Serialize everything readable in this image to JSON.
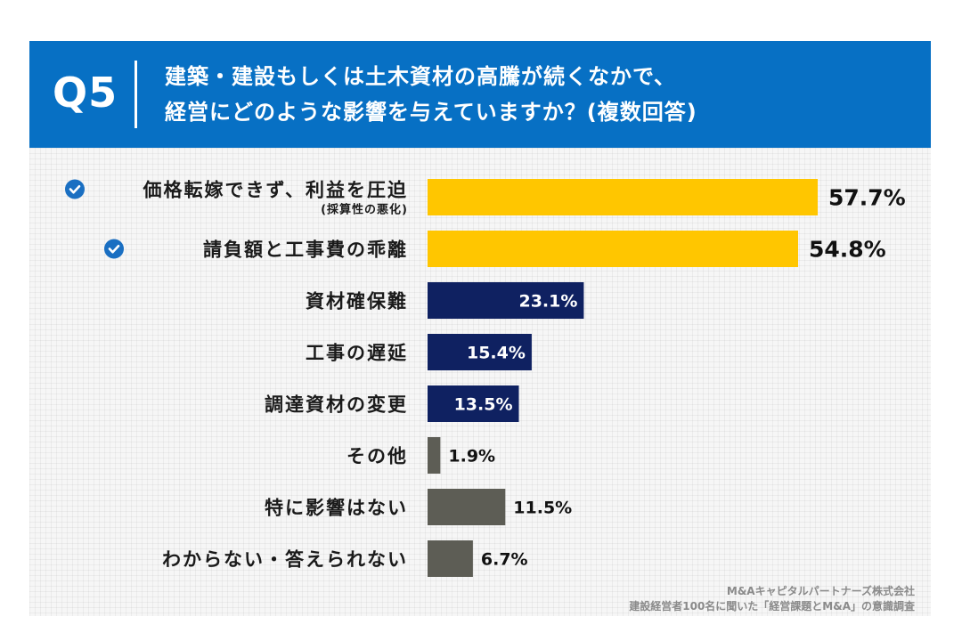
{
  "header": {
    "question_number": "Q5",
    "question_line1": "建築・建設もしくは土木資材の高騰が続くなかで、",
    "question_line2": "経営にどのような影響を与えていますか？(複数回答)"
  },
  "source": {
    "line1": "M&Aキャピタルパートナーズ株式会社",
    "line2": "建設経営者100名に聞いた「経営課題とM&A」の意識調査"
  },
  "colors": {
    "header": "#0770c4",
    "highlight": "#ffc600",
    "navy": "#0f2161",
    "gray": "#5d5d55",
    "check": "#1a6fc2"
  },
  "chart_data": {
    "type": "bar",
    "orientation": "horizontal",
    "title": "建築・建設もしくは土木資材の高騰が続くなかで、経営にどのような影響を与えていますか？(複数回答)",
    "unit": "%",
    "xlim": [
      0,
      60
    ],
    "categories": [
      "価格転嫁できず、利益を圧迫",
      "請負額と工事費の乖離",
      "資材確保難",
      "工事の遅延",
      "調達資材の変更",
      "その他",
      "特に影響はない",
      "わからない・答えられない"
    ],
    "sublabels": [
      "(採算性の悪化)",
      "",
      "",
      "",
      "",
      "",
      "",
      ""
    ],
    "values": [
      57.7,
      54.8,
      23.1,
      15.4,
      13.5,
      1.9,
      11.5,
      6.7
    ],
    "data_labels": [
      "57.7%",
      "54.8%",
      "23.1%",
      "15.4%",
      "13.5%",
      "1.9%",
      "11.5%",
      "6.7%"
    ],
    "groups": [
      "highlight",
      "highlight",
      "navy",
      "navy",
      "navy",
      "gray",
      "gray",
      "gray"
    ],
    "checkmarks": [
      true,
      true,
      false,
      false,
      false,
      false,
      false,
      false
    ]
  }
}
